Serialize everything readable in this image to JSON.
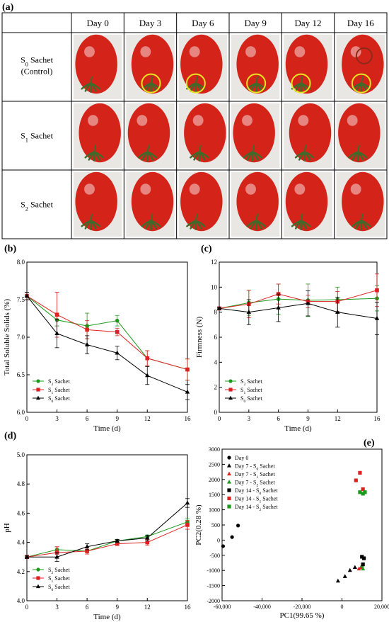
{
  "panels": {
    "a": "(a)",
    "b": "(b)",
    "c": "(c)",
    "d": "(d)",
    "e": "(e)"
  },
  "photo_table": {
    "columns": [
      "Day 0",
      "Day 3",
      "Day 6",
      "Day 9",
      "Day 12",
      "Day 16"
    ],
    "rows": [
      {
        "label_main": "S",
        "label_sub": "0",
        "label_rest": " Sachet",
        "label_line2": "(Control)"
      },
      {
        "label_main": "S",
        "label_sub": "1",
        "label_rest": " Sachet",
        "label_line2": ""
      },
      {
        "label_main": "S",
        "label_sub": "2",
        "label_rest": " Sachet",
        "label_line2": ""
      }
    ],
    "tomato_color": "#d4241a",
    "highlight_color": "#e6e620",
    "defect_color": "#8b2a1a"
  },
  "chart_data": [
    {
      "type": "line",
      "panel": "b",
      "xlabel": "Time (d)",
      "ylabel": "Total Soluble Solids (%)",
      "xlim": [
        0,
        16
      ],
      "ylim": [
        6.0,
        8.0
      ],
      "xticks": [
        0,
        3,
        6,
        9,
        12,
        16
      ],
      "yticks": [
        6.0,
        6.5,
        7.0,
        7.5,
        8.0
      ],
      "ytick_labels": [
        "6.0",
        "6.5",
        "7.0",
        "7.5",
        "8.0"
      ],
      "legend_position": "bottom-left",
      "x": [
        0,
        3,
        6,
        9,
        12,
        16
      ],
      "series": [
        {
          "name_main": "S",
          "name_sub": "2",
          "name_rest": " Sachet",
          "color": "#1a9a1a",
          "marker": "circle",
          "values": [
            7.55,
            7.23,
            7.15,
            7.22,
            6.72,
            6.57
          ],
          "errors": [
            0.05,
            0.08,
            0.17,
            0.07,
            0.1,
            0.14
          ]
        },
        {
          "name_main": "S",
          "name_sub": "1",
          "name_rest": " Sachet",
          "color": "#e02020",
          "marker": "square",
          "values": [
            7.55,
            7.3,
            7.1,
            7.07,
            6.72,
            6.57
          ],
          "errors": [
            0.05,
            0.3,
            0.12,
            0.05,
            0.1,
            0.14
          ]
        },
        {
          "name_main": "S",
          "name_sub": "0",
          "name_rest": " Sachet",
          "color": "#000000",
          "marker": "triangle",
          "values": [
            7.55,
            7.05,
            6.9,
            6.79,
            6.49,
            6.27
          ],
          "errors": [
            0.05,
            0.19,
            0.12,
            0.09,
            0.12,
            0.1
          ]
        }
      ]
    },
    {
      "type": "line",
      "panel": "c",
      "xlabel": "Time (d)",
      "ylabel": "Firmness (N)",
      "xlim": [
        0,
        16
      ],
      "ylim": [
        0,
        12
      ],
      "xticks": [
        0,
        3,
        6,
        9,
        12,
        16
      ],
      "yticks": [
        0,
        2,
        4,
        6,
        8,
        10,
        12
      ],
      "ytick_labels": [
        "0",
        "2",
        "4",
        "6",
        "8",
        "10",
        "12"
      ],
      "legend_position": "bottom-left",
      "x": [
        0,
        3,
        6,
        9,
        12,
        16
      ],
      "series": [
        {
          "name_main": "S",
          "name_sub": "2",
          "name_rest": " Sachet",
          "color": "#1a9a1a",
          "marker": "circle",
          "values": [
            8.3,
            8.75,
            9.05,
            8.95,
            9.0,
            9.1
          ],
          "errors": [
            0.1,
            1.0,
            1.2,
            1.3,
            1.0,
            1.0
          ]
        },
        {
          "name_main": "S",
          "name_sub": "1",
          "name_rest": " Sachet",
          "color": "#e02020",
          "marker": "square",
          "values": [
            8.3,
            8.65,
            9.45,
            8.85,
            8.85,
            9.75
          ],
          "errors": [
            0.1,
            1.1,
            0.8,
            0.5,
            0.8,
            1.3
          ]
        },
        {
          "name_main": "S",
          "name_sub": "0",
          "name_rest": " Sachet",
          "color": "#000000",
          "marker": "triangle",
          "values": [
            8.3,
            8.0,
            8.35,
            8.7,
            8.0,
            7.5
          ],
          "errors": [
            0.1,
            1.0,
            1.1,
            1.0,
            1.2,
            1.3
          ]
        }
      ]
    },
    {
      "type": "line",
      "panel": "d",
      "xlabel": "Time (d)",
      "ylabel": "pH",
      "xlim": [
        0,
        16
      ],
      "ylim": [
        4.0,
        5.0
      ],
      "xticks": [
        0,
        3,
        6,
        9,
        12,
        16
      ],
      "yticks": [
        4.0,
        4.2,
        4.4,
        4.6,
        4.8,
        5.0
      ],
      "ytick_labels": [
        "4.0",
        "4.2",
        "4.4",
        "4.6",
        "4.8",
        "5.0"
      ],
      "legend_position": "bottom-left",
      "x": [
        0,
        3,
        6,
        9,
        12,
        16
      ],
      "series": [
        {
          "name_main": "S",
          "name_sub": "2",
          "name_rest": " Sachet",
          "color": "#1a9a1a",
          "marker": "circle",
          "values": [
            4.3,
            4.35,
            4.34,
            4.41,
            4.44,
            4.54
          ],
          "errors": [
            0.01,
            0.02,
            0.01,
            0.01,
            0.01,
            0.02
          ]
        },
        {
          "name_main": "S",
          "name_sub": "1",
          "name_rest": " Sachet",
          "color": "#e02020",
          "marker": "square",
          "values": [
            4.3,
            4.33,
            4.34,
            4.39,
            4.4,
            4.52
          ],
          "errors": [
            0.01,
            0.04,
            0.02,
            0.01,
            0.02,
            0.03
          ]
        },
        {
          "name_main": "S",
          "name_sub": "0",
          "name_rest": " Sachet",
          "color": "#000000",
          "marker": "triangle",
          "values": [
            4.3,
            4.3,
            4.37,
            4.41,
            4.43,
            4.67
          ],
          "errors": [
            0.01,
            0.03,
            0.02,
            0.01,
            0.02,
            0.03
          ]
        }
      ]
    },
    {
      "type": "scatter",
      "panel": "e",
      "xlabel": "PC1(99.65 %)",
      "ylabel": "PC2(0.28 %)",
      "xlim": [
        -60000,
        20000
      ],
      "ylim": [
        -2000,
        3000
      ],
      "xticks": [
        -60000,
        -40000,
        -20000,
        0,
        20000
      ],
      "xtick_labels": [
        "-60,000",
        "-40,000",
        "-20,000",
        "0",
        "20,000"
      ],
      "yticks": [
        -2000,
        -1500,
        -1000,
        -500,
        0,
        500,
        1000,
        1500,
        2000,
        2500,
        3000
      ],
      "ytick_labels": [
        "-2000",
        "-1500",
        "-1000",
        "-500",
        "0",
        "500",
        "1000",
        "1500",
        "2000",
        "2500",
        "3000"
      ],
      "legend_position": "top-left",
      "series": [
        {
          "name_main": "Day 0",
          "name_sub": "",
          "name_rest": "",
          "color": "#000000",
          "marker": "circle",
          "points": [
            [
              -59500,
              -200
            ],
            [
              -55000,
              100
            ],
            [
              -52000,
              480
            ]
          ]
        },
        {
          "name_main": "Day 7 - S",
          "name_sub": "0",
          "name_rest": " Sachet",
          "color": "#000000",
          "marker": "triangle",
          "points": [
            [
              -2000,
              -1350
            ],
            [
              1500,
              -1200
            ],
            [
              4000,
              -1000
            ],
            [
              6500,
              -900
            ]
          ]
        },
        {
          "name_main": "Day 7 - S",
          "name_sub": "1",
          "name_rest": " Sachet",
          "color": "#e02020",
          "marker": "triangle",
          "points": [
            [
              8500,
              -950
            ],
            [
              9500,
              -900
            ]
          ]
        },
        {
          "name_main": "Day 7 - S",
          "name_sub": "2",
          "name_rest": " Sachet",
          "color": "#1a9a1a",
          "marker": "triangle",
          "points": [
            [
              10000,
              -850
            ],
            [
              10500,
              -950
            ]
          ]
        },
        {
          "name_main": "Day 14 - S",
          "name_sub": "0",
          "name_rest": " Sachet",
          "color": "#000000",
          "marker": "square",
          "points": [
            [
              10000,
              -550
            ],
            [
              11000,
              -600
            ],
            [
              10500,
              -800
            ]
          ]
        },
        {
          "name_main": "Day 14 - S",
          "name_sub": "1",
          "name_rest": " Sachet",
          "color": "#e02020",
          "marker": "square",
          "points": [
            [
              7000,
              1970
            ],
            [
              9000,
              2220
            ],
            [
              10500,
              1680
            ]
          ]
        },
        {
          "name_main": "Day 14 - S",
          "name_sub": "2",
          "name_rest": " Sachet",
          "color": "#1a9a1a",
          "marker": "square",
          "points": [
            [
              9000,
              1580
            ],
            [
              10500,
              1530
            ],
            [
              11500,
              1580
            ]
          ]
        }
      ]
    }
  ]
}
